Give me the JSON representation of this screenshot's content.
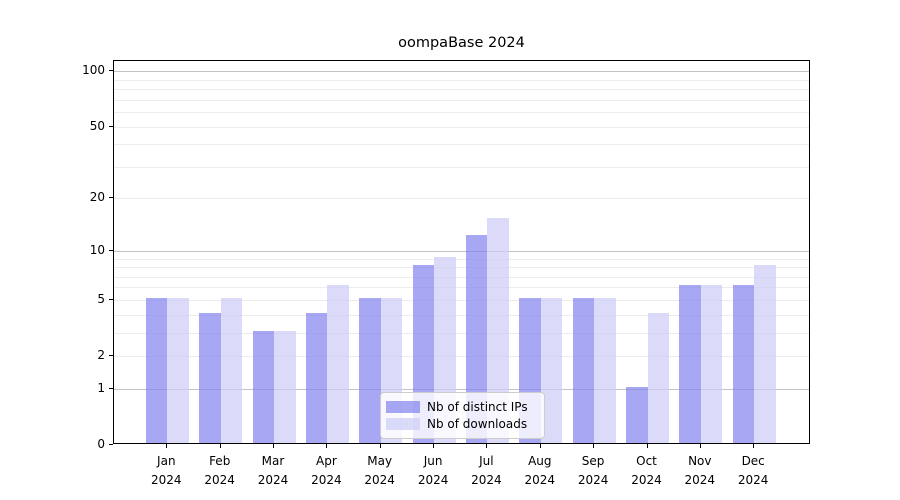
{
  "title": "oompaBase 2024",
  "chart_data": {
    "type": "bar",
    "title": "oompaBase 2024",
    "categories": [
      "Jan 2024",
      "Feb 2024",
      "Mar 2024",
      "Apr 2024",
      "May 2024",
      "Jun 2024",
      "Jul 2024",
      "Aug 2024",
      "Sep 2024",
      "Oct 2024",
      "Nov 2024",
      "Dec 2024"
    ],
    "x_months": [
      "Jan",
      "Feb",
      "Mar",
      "Apr",
      "May",
      "Jun",
      "Jul",
      "Aug",
      "Sep",
      "Oct",
      "Nov",
      "Dec"
    ],
    "x_year": "2024",
    "series": [
      {
        "name": "Nb of distinct IPs",
        "color": "rgba(133,133,238,0.72)",
        "values": [
          5,
          4,
          3,
          4,
          5,
          8,
          12,
          5,
          5,
          1,
          6,
          6
        ]
      },
      {
        "name": "Nb of downloads",
        "color": "rgba(205,205,247,0.72)",
        "values": [
          5,
          5,
          3,
          6,
          5,
          9,
          15,
          5,
          5,
          4,
          6,
          8
        ]
      }
    ],
    "xlabel": "",
    "ylabel": "",
    "yscale": "log1p",
    "y_ticks": [
      0,
      1,
      2,
      5,
      10,
      20,
      50,
      100
    ],
    "ylim": [
      0,
      113
    ],
    "gridlines": {
      "major": [
        1,
        10,
        100
      ],
      "minor": [
        2,
        3,
        4,
        5,
        6,
        7,
        8,
        9,
        20,
        30,
        40,
        50,
        60,
        70,
        80,
        90
      ]
    },
    "grid": true,
    "legend_position": "lower center",
    "colors": {
      "major_grid": "#c3c3c3",
      "minor_grid": "#ececec",
      "spine": "#000000",
      "legend_border": "#cccccc"
    }
  }
}
